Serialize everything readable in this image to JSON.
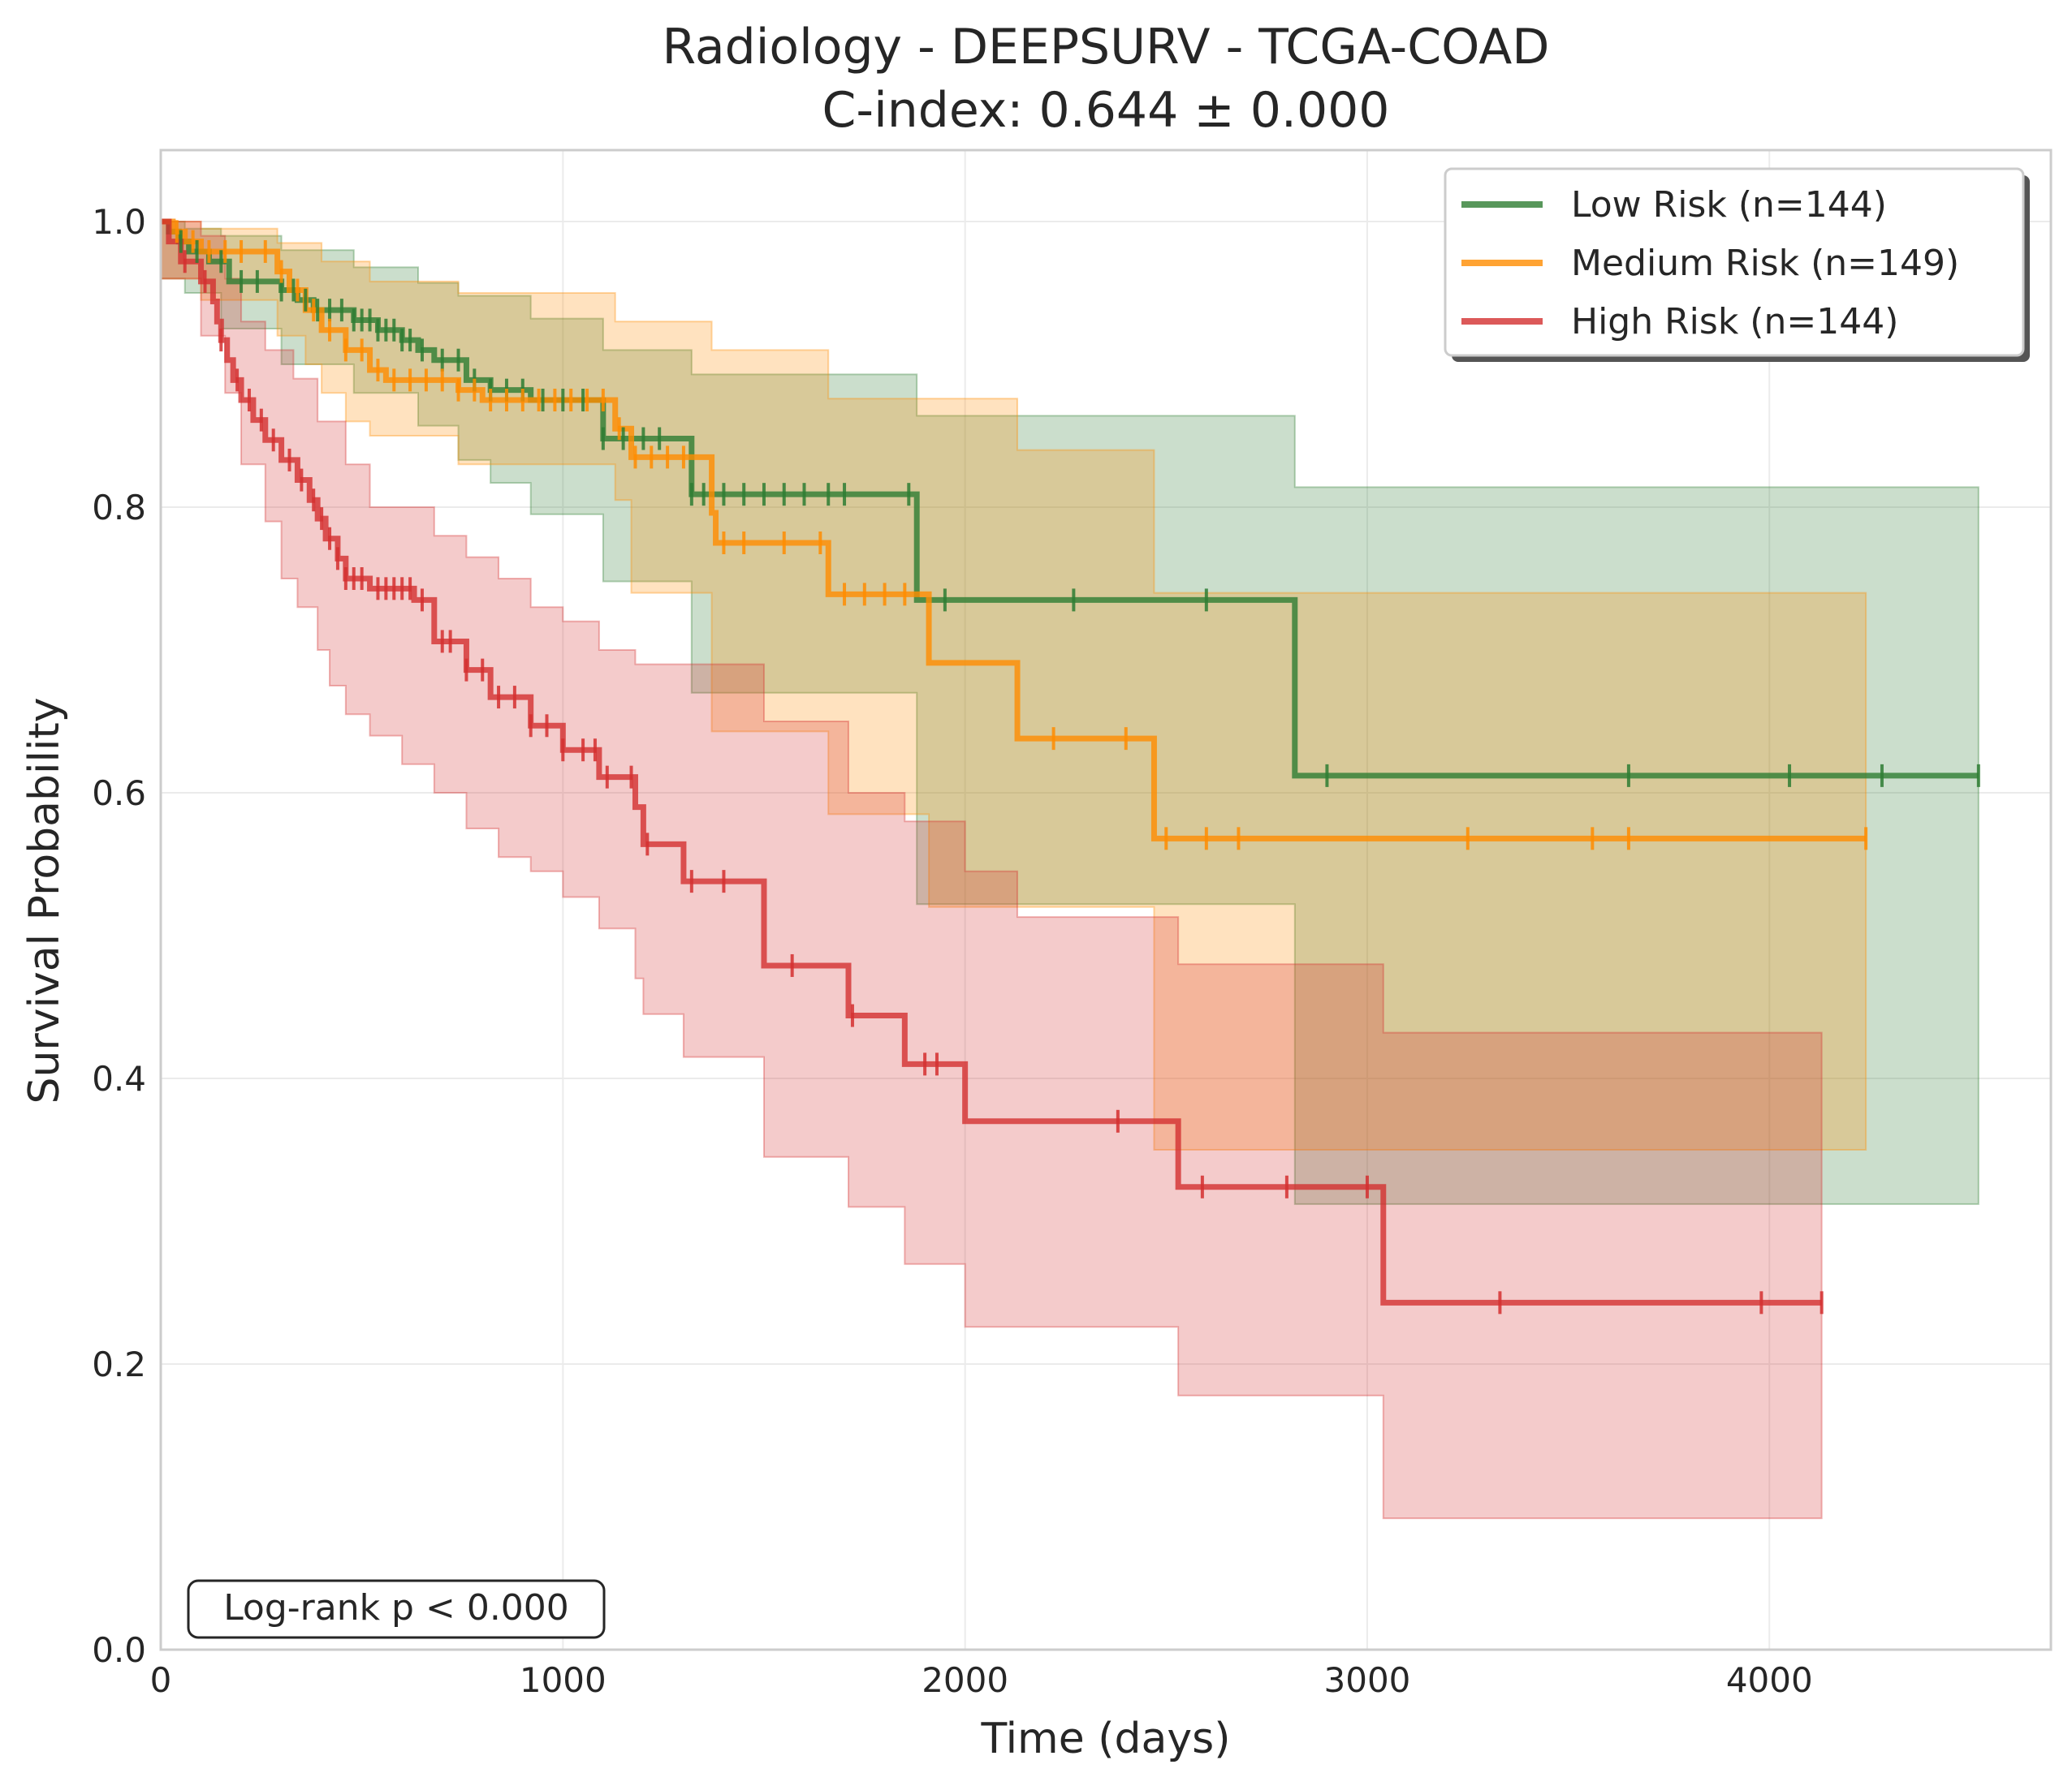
{
  "chart_data": {
    "type": "line",
    "title_line1": "Radiology - DEEPSURV - TCGA-COAD",
    "title_line2": "C-index: 0.644 ± 0.000",
    "xlabel": "Time (days)",
    "ylabel": "Survival Probability",
    "xlim": [
      0,
      4700
    ],
    "ylim": [
      0,
      1.05
    ],
    "x_ticks": [
      0,
      1000,
      2000,
      3000,
      4000
    ],
    "x_tick_labels": [
      "0",
      "1000",
      "2000",
      "3000",
      "4000"
    ],
    "y_ticks": [
      0,
      0.2,
      0.4,
      0.6,
      0.8,
      1.0
    ],
    "y_tick_labels": [
      "0.0",
      "0.2",
      "0.4",
      "0.6",
      "0.8",
      "1.0"
    ],
    "grid": true,
    "legend_position": "top-right",
    "annotation": "Log-rank p < 0.000",
    "series": [
      {
        "name": "Low Risk (n=144)",
        "color": "#2e7d32",
        "steps": [
          [
            0,
            1.0
          ],
          [
            20,
            0.993
          ],
          [
            45,
            0.986
          ],
          [
            70,
            0.979
          ],
          [
            120,
            0.972
          ],
          [
            170,
            0.958
          ],
          [
            300,
            0.952
          ],
          [
            340,
            0.945
          ],
          [
            380,
            0.938
          ],
          [
            480,
            0.931
          ],
          [
            540,
            0.924
          ],
          [
            600,
            0.917
          ],
          [
            640,
            0.91
          ],
          [
            680,
            0.903
          ],
          [
            760,
            0.889
          ],
          [
            820,
            0.882
          ],
          [
            920,
            0.875
          ],
          [
            1100,
            0.848
          ],
          [
            1320,
            0.809
          ],
          [
            1880,
            0.735
          ],
          [
            2820,
            0.612
          ],
          [
            4520,
            0.612
          ]
        ],
        "ci_upper": [
          [
            0,
            1.0
          ],
          [
            60,
            0.995
          ],
          [
            150,
            0.99
          ],
          [
            300,
            0.98
          ],
          [
            480,
            0.968
          ],
          [
            640,
            0.957
          ],
          [
            740,
            0.948
          ],
          [
            920,
            0.932
          ],
          [
            1100,
            0.91
          ],
          [
            1320,
            0.893
          ],
          [
            1880,
            0.864
          ],
          [
            2820,
            0.814
          ],
          [
            4520,
            0.814
          ]
        ],
        "ci_lower": [
          [
            0,
            0.96
          ],
          [
            60,
            0.95
          ],
          [
            150,
            0.925
          ],
          [
            300,
            0.9
          ],
          [
            480,
            0.88
          ],
          [
            640,
            0.857
          ],
          [
            740,
            0.833
          ],
          [
            820,
            0.817
          ],
          [
            920,
            0.795
          ],
          [
            1100,
            0.748
          ],
          [
            1320,
            0.67
          ],
          [
            1880,
            0.522
          ],
          [
            2820,
            0.312
          ],
          [
            4520,
            0.312
          ]
        ],
        "censor_times": [
          50,
          90,
          150,
          200,
          240,
          300,
          330,
          360,
          390,
          420,
          450,
          480,
          500,
          520,
          540,
          560,
          580,
          600,
          620,
          650,
          700,
          740,
          780,
          820,
          860,
          900,
          950,
          1000,
          1050,
          1100,
          1150,
          1200,
          1240,
          1320,
          1350,
          1400,
          1450,
          1500,
          1550,
          1600,
          1660,
          1700,
          1860,
          1950,
          2270,
          2600,
          2900,
          3650,
          4050,
          4280,
          4520
        ]
      },
      {
        "name": "Medium Risk (n=149)",
        "color": "#ff8c00",
        "steps": [
          [
            0,
            1.0
          ],
          [
            30,
            0.993
          ],
          [
            60,
            0.986
          ],
          [
            100,
            0.979
          ],
          [
            290,
            0.965
          ],
          [
            320,
            0.952
          ],
          [
            360,
            0.938
          ],
          [
            400,
            0.924
          ],
          [
            460,
            0.91
          ],
          [
            520,
            0.896
          ],
          [
            560,
            0.889
          ],
          [
            740,
            0.882
          ],
          [
            800,
            0.875
          ],
          [
            1130,
            0.855
          ],
          [
            1170,
            0.835
          ],
          [
            1370,
            0.796
          ],
          [
            1380,
            0.775
          ],
          [
            1660,
            0.739
          ],
          [
            1910,
            0.691
          ],
          [
            2130,
            0.638
          ],
          [
            2470,
            0.568
          ],
          [
            4240,
            0.568
          ]
        ],
        "ci_upper": [
          [
            0,
            1.0
          ],
          [
            100,
            0.995
          ],
          [
            290,
            0.985
          ],
          [
            400,
            0.972
          ],
          [
            520,
            0.958
          ],
          [
            740,
            0.95
          ],
          [
            1130,
            0.93
          ],
          [
            1370,
            0.91
          ],
          [
            1660,
            0.876
          ],
          [
            2130,
            0.84
          ],
          [
            2470,
            0.74
          ],
          [
            4240,
            0.74
          ]
        ],
        "ci_lower": [
          [
            0,
            0.96
          ],
          [
            100,
            0.945
          ],
          [
            290,
            0.92
          ],
          [
            360,
            0.9
          ],
          [
            400,
            0.88
          ],
          [
            460,
            0.86
          ],
          [
            520,
            0.85
          ],
          [
            740,
            0.83
          ],
          [
            1130,
            0.805
          ],
          [
            1170,
            0.74
          ],
          [
            1370,
            0.643
          ],
          [
            1660,
            0.585
          ],
          [
            1910,
            0.52
          ],
          [
            2470,
            0.35
          ],
          [
            4240,
            0.35
          ]
        ],
        "censor_times": [
          40,
          80,
          120,
          160,
          200,
          260,
          300,
          340,
          380,
          420,
          460,
          500,
          540,
          580,
          620,
          660,
          700,
          740,
          780,
          820,
          860,
          900,
          940,
          980,
          1020,
          1060,
          1100,
          1140,
          1180,
          1220,
          1260,
          1300,
          1400,
          1450,
          1550,
          1640,
          1700,
          1750,
          1800,
          1850,
          2220,
          2400,
          2500,
          2600,
          2680,
          3250,
          3560,
          3650,
          4240
        ]
      },
      {
        "name": "High Risk (n=144)",
        "color": "#d32f2f",
        "steps": [
          [
            0,
            1.0
          ],
          [
            20,
            0.986
          ],
          [
            50,
            0.972
          ],
          [
            100,
            0.958
          ],
          [
            130,
            0.944
          ],
          [
            140,
            0.93
          ],
          [
            150,
            0.917
          ],
          [
            165,
            0.903
          ],
          [
            180,
            0.889
          ],
          [
            200,
            0.875
          ],
          [
            230,
            0.861
          ],
          [
            260,
            0.847
          ],
          [
            300,
            0.833
          ],
          [
            340,
            0.819
          ],
          [
            370,
            0.805
          ],
          [
            390,
            0.792
          ],
          [
            410,
            0.778
          ],
          [
            440,
            0.764
          ],
          [
            460,
            0.75
          ],
          [
            520,
            0.743
          ],
          [
            630,
            0.735
          ],
          [
            680,
            0.706
          ],
          [
            760,
            0.686
          ],
          [
            820,
            0.667
          ],
          [
            920,
            0.647
          ],
          [
            1000,
            0.63
          ],
          [
            1090,
            0.611
          ],
          [
            1180,
            0.59
          ],
          [
            1200,
            0.564
          ],
          [
            1300,
            0.538
          ],
          [
            1500,
            0.479
          ],
          [
            1710,
            0.444
          ],
          [
            1850,
            0.41
          ],
          [
            2000,
            0.37
          ],
          [
            2530,
            0.324
          ],
          [
            3040,
            0.243
          ],
          [
            4130,
            0.243
          ]
        ],
        "ci_upper": [
          [
            0,
            1.0
          ],
          [
            100,
            0.99
          ],
          [
            160,
            0.96
          ],
          [
            200,
            0.93
          ],
          [
            260,
            0.91
          ],
          [
            330,
            0.89
          ],
          [
            390,
            0.86
          ],
          [
            460,
            0.83
          ],
          [
            520,
            0.8
          ],
          [
            680,
            0.78
          ],
          [
            760,
            0.765
          ],
          [
            840,
            0.75
          ],
          [
            920,
            0.73
          ],
          [
            1000,
            0.72
          ],
          [
            1090,
            0.7
          ],
          [
            1180,
            0.69
          ],
          [
            1300,
            0.69
          ],
          [
            1500,
            0.65
          ],
          [
            1710,
            0.6
          ],
          [
            1850,
            0.58
          ],
          [
            2000,
            0.545
          ],
          [
            2130,
            0.513
          ],
          [
            2530,
            0.48
          ],
          [
            3040,
            0.432
          ],
          [
            4130,
            0.432
          ]
        ],
        "ci_lower": [
          [
            0,
            0.96
          ],
          [
            100,
            0.92
          ],
          [
            160,
            0.88
          ],
          [
            200,
            0.83
          ],
          [
            260,
            0.79
          ],
          [
            300,
            0.75
          ],
          [
            340,
            0.73
          ],
          [
            390,
            0.7
          ],
          [
            420,
            0.675
          ],
          [
            460,
            0.655
          ],
          [
            520,
            0.64
          ],
          [
            600,
            0.62
          ],
          [
            680,
            0.6
          ],
          [
            760,
            0.575
          ],
          [
            840,
            0.555
          ],
          [
            920,
            0.545
          ],
          [
            1000,
            0.527
          ],
          [
            1090,
            0.505
          ],
          [
            1180,
            0.47
          ],
          [
            1200,
            0.445
          ],
          [
            1300,
            0.415
          ],
          [
            1500,
            0.345
          ],
          [
            1710,
            0.31
          ],
          [
            1850,
            0.27
          ],
          [
            2000,
            0.226
          ],
          [
            2530,
            0.178
          ],
          [
            3040,
            0.092
          ],
          [
            4130,
            0.092
          ]
        ],
        "censor_times": [
          60,
          110,
          150,
          190,
          220,
          250,
          280,
          320,
          350,
          380,
          400,
          420,
          440,
          460,
          480,
          500,
          540,
          560,
          580,
          600,
          620,
          650,
          700,
          720,
          760,
          800,
          840,
          880,
          920,
          960,
          1000,
          1050,
          1080,
          1110,
          1170,
          1210,
          1320,
          1400,
          1570,
          1720,
          1900,
          1930,
          2380,
          2590,
          2800,
          3000,
          3330,
          3980,
          4130
        ]
      }
    ]
  }
}
